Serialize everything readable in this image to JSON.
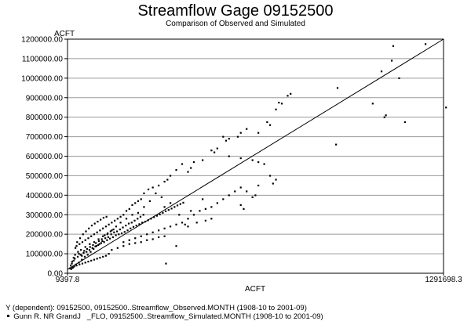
{
  "chart_data": {
    "type": "scatter",
    "title": "Streamflow Gage 09152500",
    "subtitle": "Comparison of Observed and Simulated",
    "xlabel": "ACFT",
    "ylabel": "ACFT",
    "xlim": [
      9397.8,
      1291698.3
    ],
    "ylim": [
      0,
      1200000
    ],
    "x_tick_labels": [
      "9397.8",
      "1291698.3"
    ],
    "y_ticks": [
      0,
      100000,
      200000,
      300000,
      400000,
      500000,
      600000,
      700000,
      800000,
      900000,
      1000000,
      1100000,
      1200000
    ],
    "y_tick_labels": [
      "0.00",
      "100000.00",
      "200000.00",
      "300000.00",
      "400000.00",
      "500000.00",
      "600000.00",
      "700000.00",
      "800000.00",
      "900000.00",
      "1000000.00",
      "1100000.00",
      "1200000.00"
    ],
    "grid": true,
    "reference_line": {
      "x": [
        9397.8,
        1291698.3
      ],
      "y": [
        20000,
        1200000
      ]
    },
    "legend": [
      {
        "text": "Y (dependent): 09152500, 09152500..Streamflow_Observed.MONTH (1908-10 to 2001-09)",
        "marker": "none"
      },
      {
        "text": "Gunn R. NR GrandJ   _FLO, 09152500..Streamflow_Simulated.MONTH (1908-10 to 2001-09)",
        "marker": "dot"
      }
    ],
    "series": [
      {
        "name": "Gunn R. NR GrandJ   _FLO, 09152500..Streamflow_Simulated.MONTH (1908-10 to 2001-09)",
        "points": [
          [
            1230000,
            1175000
          ],
          [
            1120000,
            1165000
          ],
          [
            1115000,
            1090000
          ],
          [
            1080000,
            1035000
          ],
          [
            1300000,
            850000
          ],
          [
            1140000,
            1000000
          ],
          [
            1050000,
            870000
          ],
          [
            1090000,
            800000
          ],
          [
            1095000,
            810000
          ],
          [
            1160000,
            775000
          ],
          [
            930000,
            950000
          ],
          [
            925000,
            660000
          ],
          [
            760000,
            910000
          ],
          [
            740000,
            870000
          ],
          [
            730000,
            875000
          ],
          [
            770000,
            920000
          ],
          [
            720000,
            840000
          ],
          [
            690000,
            775000
          ],
          [
            700000,
            760000
          ],
          [
            660000,
            720000
          ],
          [
            620000,
            740000
          ],
          [
            590000,
            700000
          ],
          [
            600000,
            720000
          ],
          [
            560000,
            690000
          ],
          [
            550000,
            680000
          ],
          [
            540000,
            700000
          ],
          [
            520000,
            640000
          ],
          [
            500000,
            630000
          ],
          [
            510000,
            620000
          ],
          [
            470000,
            580000
          ],
          [
            440000,
            570000
          ],
          [
            430000,
            540000
          ],
          [
            420000,
            520000
          ],
          [
            400000,
            560000
          ],
          [
            380000,
            530000
          ],
          [
            360000,
            500000
          ],
          [
            350000,
            480000
          ],
          [
            340000,
            470000
          ],
          [
            320000,
            450000
          ],
          [
            300000,
            440000
          ],
          [
            285000,
            430000
          ],
          [
            270000,
            410000
          ],
          [
            260000,
            380000
          ],
          [
            250000,
            370000
          ],
          [
            240000,
            360000
          ],
          [
            230000,
            350000
          ],
          [
            220000,
            330000
          ],
          [
            210000,
            320000
          ],
          [
            200000,
            300000
          ],
          [
            190000,
            290000
          ],
          [
            180000,
            280000
          ],
          [
            170000,
            270000
          ],
          [
            160000,
            260000
          ],
          [
            150000,
            250000
          ],
          [
            140000,
            240000
          ],
          [
            130000,
            230000
          ],
          [
            120000,
            220000
          ],
          [
            110000,
            210000
          ],
          [
            100000,
            200000
          ],
          [
            90000,
            190000
          ],
          [
            80000,
            180000
          ],
          [
            70000,
            170000
          ],
          [
            60000,
            160000
          ],
          [
            50000,
            150000
          ],
          [
            40000,
            140000
          ],
          [
            560000,
            600000
          ],
          [
            600000,
            590000
          ],
          [
            640000,
            580000
          ],
          [
            660000,
            570000
          ],
          [
            680000,
            560000
          ],
          [
            700000,
            500000
          ],
          [
            720000,
            480000
          ],
          [
            710000,
            460000
          ],
          [
            660000,
            450000
          ],
          [
            600000,
            440000
          ],
          [
            580000,
            420000
          ],
          [
            560000,
            400000
          ],
          [
            540000,
            380000
          ],
          [
            520000,
            360000
          ],
          [
            500000,
            340000
          ],
          [
            480000,
            330000
          ],
          [
            460000,
            320000
          ],
          [
            440000,
            300000
          ],
          [
            420000,
            280000
          ],
          [
            400000,
            260000
          ],
          [
            380000,
            250000
          ],
          [
            360000,
            240000
          ],
          [
            340000,
            230000
          ],
          [
            320000,
            220000
          ],
          [
            300000,
            210000
          ],
          [
            280000,
            200000
          ],
          [
            260000,
            190000
          ],
          [
            240000,
            180000
          ],
          [
            220000,
            170000
          ],
          [
            200000,
            160000
          ],
          [
            620000,
            420000
          ],
          [
            640000,
            390000
          ],
          [
            650000,
            400000
          ],
          [
            600000,
            350000
          ],
          [
            610000,
            330000
          ],
          [
            470000,
            380000
          ],
          [
            430000,
            320000
          ],
          [
            410000,
            250000
          ],
          [
            380000,
            140000
          ],
          [
            345000,
            50000
          ],
          [
            480000,
            270000
          ],
          [
            500000,
            280000
          ],
          [
            450000,
            260000
          ],
          [
            420000,
            240000
          ],
          [
            390000,
            300000
          ],
          [
            360000,
            360000
          ],
          [
            340000,
            340000
          ],
          [
            330000,
            390000
          ],
          [
            310000,
            410000
          ],
          [
            290000,
            370000
          ],
          [
            270000,
            340000
          ],
          [
            250000,
            310000
          ],
          [
            230000,
            300000
          ],
          [
            210000,
            280000
          ],
          [
            190000,
            260000
          ],
          [
            175000,
            240000
          ],
          [
            160000,
            220000
          ],
          [
            145000,
            200000
          ],
          [
            130000,
            190000
          ],
          [
            115000,
            175000
          ],
          [
            100000,
            160000
          ],
          [
            85000,
            150000
          ],
          [
            70000,
            135000
          ],
          [
            55000,
            120000
          ],
          [
            45000,
            110000
          ],
          [
            35000,
            95000
          ],
          [
            30000,
            80000
          ],
          [
            25000,
            60000
          ],
          [
            20000,
            40000
          ],
          [
            18000,
            25000
          ],
          [
            28000,
            30000
          ],
          [
            38000,
            45000
          ],
          [
            48000,
            55000
          ],
          [
            58000,
            70000
          ],
          [
            68000,
            85000
          ],
          [
            78000,
            95000
          ],
          [
            88000,
            110000
          ],
          [
            98000,
            125000
          ],
          [
            108000,
            140000
          ],
          [
            118000,
            150000
          ],
          [
            128000,
            165000
          ],
          [
            138000,
            180000
          ],
          [
            148000,
            185000
          ],
          [
            158000,
            200000
          ],
          [
            168000,
            210000
          ],
          [
            178000,
            215000
          ],
          [
            188000,
            225000
          ],
          [
            198000,
            235000
          ],
          [
            208000,
            245000
          ],
          [
            218000,
            255000
          ],
          [
            228000,
            260000
          ],
          [
            238000,
            270000
          ],
          [
            248000,
            280000
          ],
          [
            258000,
            290000
          ],
          [
            268000,
            300000
          ],
          [
            160000,
            120000
          ],
          [
            180000,
            130000
          ],
          [
            200000,
            140000
          ],
          [
            220000,
            150000
          ],
          [
            240000,
            155000
          ],
          [
            260000,
            160000
          ],
          [
            280000,
            170000
          ],
          [
            300000,
            175000
          ],
          [
            320000,
            185000
          ],
          [
            340000,
            190000
          ],
          [
            150000,
            100000
          ],
          [
            140000,
            90000
          ],
          [
            130000,
            85000
          ],
          [
            120000,
            80000
          ],
          [
            110000,
            75000
          ],
          [
            100000,
            70000
          ],
          [
            90000,
            65000
          ],
          [
            80000,
            60000
          ],
          [
            70000,
            55000
          ],
          [
            60000,
            50000
          ],
          [
            50000,
            45000
          ],
          [
            40000,
            40000
          ],
          [
            32000,
            35000
          ],
          [
            26000,
            28000
          ],
          [
            22000,
            22000
          ],
          [
            52000,
            180000
          ],
          [
            62000,
            200000
          ],
          [
            72000,
            215000
          ],
          [
            82000,
            230000
          ],
          [
            92000,
            245000
          ],
          [
            102000,
            255000
          ],
          [
            112000,
            265000
          ],
          [
            122000,
            275000
          ],
          [
            132000,
            285000
          ],
          [
            142000,
            290000
          ],
          [
            42000,
            160000
          ],
          [
            36000,
            130000
          ],
          [
            48000,
            100000
          ],
          [
            58000,
            90000
          ],
          [
            66000,
            115000
          ],
          [
            76000,
            125000
          ],
          [
            86000,
            135000
          ],
          [
            96000,
            145000
          ],
          [
            106000,
            155000
          ],
          [
            116000,
            165000
          ],
          [
            126000,
            175000
          ],
          [
            136000,
            195000
          ],
          [
            146000,
            205000
          ],
          [
            156000,
            215000
          ],
          [
            166000,
            225000
          ],
          [
            24000,
            50000
          ],
          [
            30000,
            65000
          ],
          [
            34000,
            75000
          ],
          [
            44000,
            85000
          ],
          [
            54000,
            95000
          ],
          [
            64000,
            105000
          ],
          [
            74000,
            110000
          ],
          [
            84000,
            120000
          ],
          [
            94000,
            130000
          ],
          [
            104000,
            138000
          ],
          [
            114000,
            145000
          ],
          [
            124000,
            155000
          ],
          [
            134000,
            160000
          ],
          [
            144000,
            170000
          ],
          [
            154000,
            178000
          ],
          [
            164000,
            185000
          ],
          [
            174000,
            195000
          ],
          [
            184000,
            200000
          ],
          [
            194000,
            205000
          ],
          [
            204000,
            212000
          ],
          [
            214000,
            220000
          ],
          [
            224000,
            230000
          ],
          [
            234000,
            238000
          ],
          [
            244000,
            245000
          ],
          [
            254000,
            252000
          ],
          [
            264000,
            260000
          ],
          [
            274000,
            265000
          ],
          [
            284000,
            272000
          ],
          [
            294000,
            280000
          ],
          [
            304000,
            288000
          ],
          [
            314000,
            295000
          ],
          [
            324000,
            302000
          ],
          [
            334000,
            310000
          ],
          [
            344000,
            318000
          ],
          [
            354000,
            325000
          ],
          [
            364000,
            332000
          ],
          [
            374000,
            340000
          ],
          [
            384000,
            348000
          ],
          [
            394000,
            355000
          ],
          [
            404000,
            362000
          ]
        ]
      }
    ]
  }
}
